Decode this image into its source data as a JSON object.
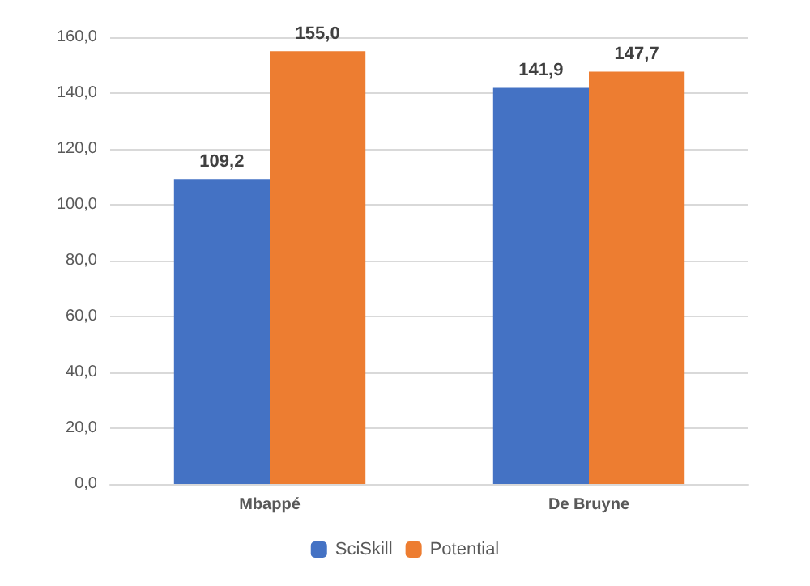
{
  "chart_data": {
    "type": "bar",
    "categories": [
      "Mbappé",
      "De Bruyne"
    ],
    "series": [
      {
        "name": "SciSkill",
        "color": "#4472c4",
        "values": [
          109.2,
          141.9
        ],
        "value_labels": [
          "109,2",
          "141,9"
        ]
      },
      {
        "name": "Potential",
        "color": "#ed7d31",
        "values": [
          155.0,
          147.7
        ],
        "value_labels": [
          "155,0",
          "147,7"
        ]
      }
    ],
    "ylim": [
      0,
      160
    ],
    "yticks": [
      {
        "value": 0,
        "label": "0,0"
      },
      {
        "value": 20,
        "label": "20,0"
      },
      {
        "value": 40,
        "label": "40,0"
      },
      {
        "value": 60,
        "label": "60,0"
      },
      {
        "value": 80,
        "label": "80,0"
      },
      {
        "value": 100,
        "label": "100,0"
      },
      {
        "value": 120,
        "label": "120,0"
      },
      {
        "value": 140,
        "label": "140,0"
      },
      {
        "value": 160,
        "label": "160,0"
      }
    ],
    "grid": "y",
    "legend": "bottom"
  }
}
